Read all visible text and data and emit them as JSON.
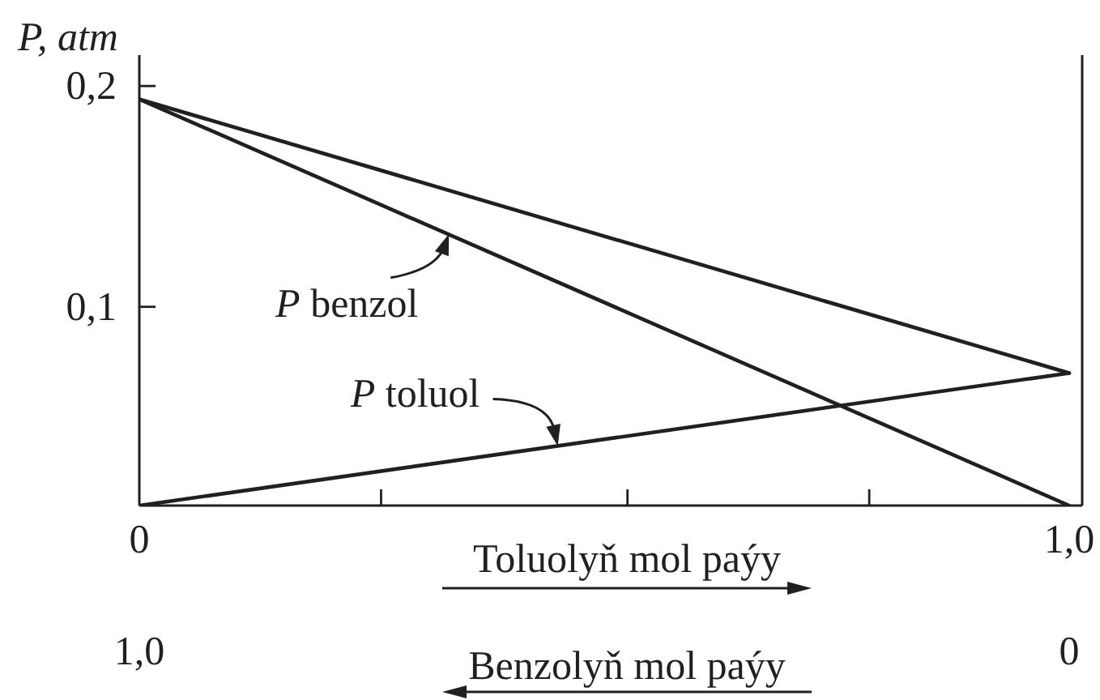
{
  "chart_data": {
    "type": "line",
    "ylabel": "P, atm",
    "xlabel": "Toluolyň mol paýy",
    "x2label": "Benzolyň mol paýy",
    "x": [
      0,
      1
    ],
    "series": [
      {
        "color": "#231f20",
        "values": [
          0.194,
          0.07
        ]
      },
      {
        "color": "#231f20",
        "values": [
          0.194,
          0.01
        ]
      },
      {
        "color": "#231f20",
        "values": [
          0.01,
          0.07
        ]
      }
    ],
    "xlim": [
      0,
      1.014
    ],
    "xticks": [
      0,
      {
        "value": 0.26,
        "label": null
      },
      {
        "value": 0.525,
        "label": null
      },
      {
        "value": 0.785,
        "label": null
      },
      {
        "value": 1,
        "label": "1,0"
      }
    ],
    "x2lim": [
      1,
      -0.014
    ],
    "x2ticks": [
      {
        "value": 1,
        "label": "1,0"
      },
      0
    ],
    "ylim": [
      0.01,
      0.214
    ],
    "yticks": [
      {
        "value": 0.1,
        "label": "0,1"
      },
      {
        "value": 0.2,
        "label": "0,2"
      }
    ],
    "marker": "none",
    "line_style": "solid",
    "annotations": [
      {
        "text": "P benzol",
        "x": 0.333,
        "y": 0.133
      },
      {
        "text": "P toluol",
        "x": 0.45,
        "y": 0.037
      }
    ]
  }
}
